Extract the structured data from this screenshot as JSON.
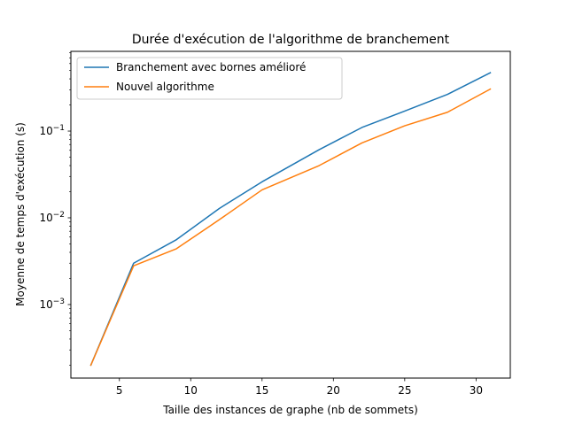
{
  "chart_data": {
    "type": "line",
    "title": "Durée d'exécution de l'algorithme de branchement",
    "xlabel": "Taille des instances de graphe (nb de sommets)",
    "ylabel": "Moyenne de temps d'exécution (s)",
    "xlim": [
      1.6,
      32.4
    ],
    "ylim": [
      0.000142,
      0.83
    ],
    "yscale": "log",
    "grid": false,
    "legend_position": "top-left",
    "x_ticks": [
      {
        "value": 5,
        "label": "5"
      },
      {
        "value": 10,
        "label": "10"
      },
      {
        "value": 15,
        "label": "15"
      },
      {
        "value": 20,
        "label": "20"
      },
      {
        "value": 25,
        "label": "25"
      },
      {
        "value": 30,
        "label": "30"
      }
    ],
    "y_ticks": [
      {
        "value": 0.001,
        "base": "10",
        "exp": "−3"
      },
      {
        "value": 0.01,
        "base": "10",
        "exp": "−2"
      },
      {
        "value": 0.1,
        "base": "10",
        "exp": "−1"
      }
    ],
    "series": [
      {
        "name": "Branchement avec bornes amélioré",
        "color": "#1f77b4",
        "x": [
          3,
          6,
          9,
          12,
          15,
          19,
          22,
          25,
          28,
          31
        ],
        "y": [
          0.0002,
          0.003,
          0.0056,
          0.0128,
          0.026,
          0.061,
          0.11,
          0.17,
          0.265,
          0.47
        ]
      },
      {
        "name": "Nouvel algorithme",
        "color": "#ff7f0e",
        "x": [
          3,
          6,
          9,
          12,
          15,
          19,
          22,
          25,
          28,
          31
        ],
        "y": [
          0.0002,
          0.0028,
          0.0044,
          0.0095,
          0.021,
          0.04,
          0.073,
          0.115,
          0.165,
          0.305
        ]
      }
    ]
  }
}
